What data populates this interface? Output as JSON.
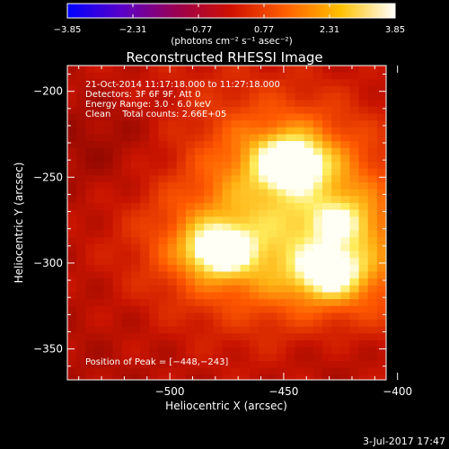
{
  "chart_data": {
    "type": "heatmap",
    "title": "Reconstructed RHESSI Image",
    "xlabel": "Heliocentric X (arcsec)",
    "ylabel": "Heliocentric Y (arcsec)",
    "xlim": [
      -545,
      -405
    ],
    "ylim": [
      -368,
      -185
    ],
    "x_ticks": [
      -500,
      -450,
      -400
    ],
    "y_ticks": [
      -200,
      -250,
      -300,
      -350
    ],
    "x_tick_labels": [
      "−500",
      "−450",
      "−400"
    ],
    "y_tick_labels": [
      "−200",
      "−250",
      "−300",
      "−350"
    ],
    "colorbar": {
      "min": -3.85,
      "max": 3.85,
      "tick_labels": [
        "−3.85",
        "−2.31",
        "−0.77",
        "0.77",
        "2.31",
        "3.85"
      ],
      "unit_label": "(photons cm⁻² s⁻¹ asec⁻²)",
      "colormap": [
        "#0000ff",
        "#5a00c8",
        "#9a0050",
        "#d01000",
        "#ff6000",
        "#ffc000",
        "#ffffff"
      ]
    },
    "info_lines": [
      "21-Oct-2014 11:17:18.000 to 11:27:18.000",
      "Detectors: 3F 6F 9F, Att 0",
      "Energy Range: 3.0 - 6.0 keV",
      "Clean    Total counts: 2.66E+05"
    ],
    "peak_label": "Position of Peak = [−448,−243]",
    "peak_position": [
      -448,
      -243
    ],
    "sources": [
      {
        "x": -447,
        "y": -242,
        "amplitude": 1.0
      },
      {
        "x": -478,
        "y": -292,
        "amplitude": 0.9
      },
      {
        "x": -430,
        "y": -305,
        "amplitude": 0.75
      },
      {
        "x": -425,
        "y": -276,
        "amplitude": 0.4
      }
    ],
    "grid": false
  },
  "footer": {
    "date": "3-Jul-2017 17:47"
  }
}
